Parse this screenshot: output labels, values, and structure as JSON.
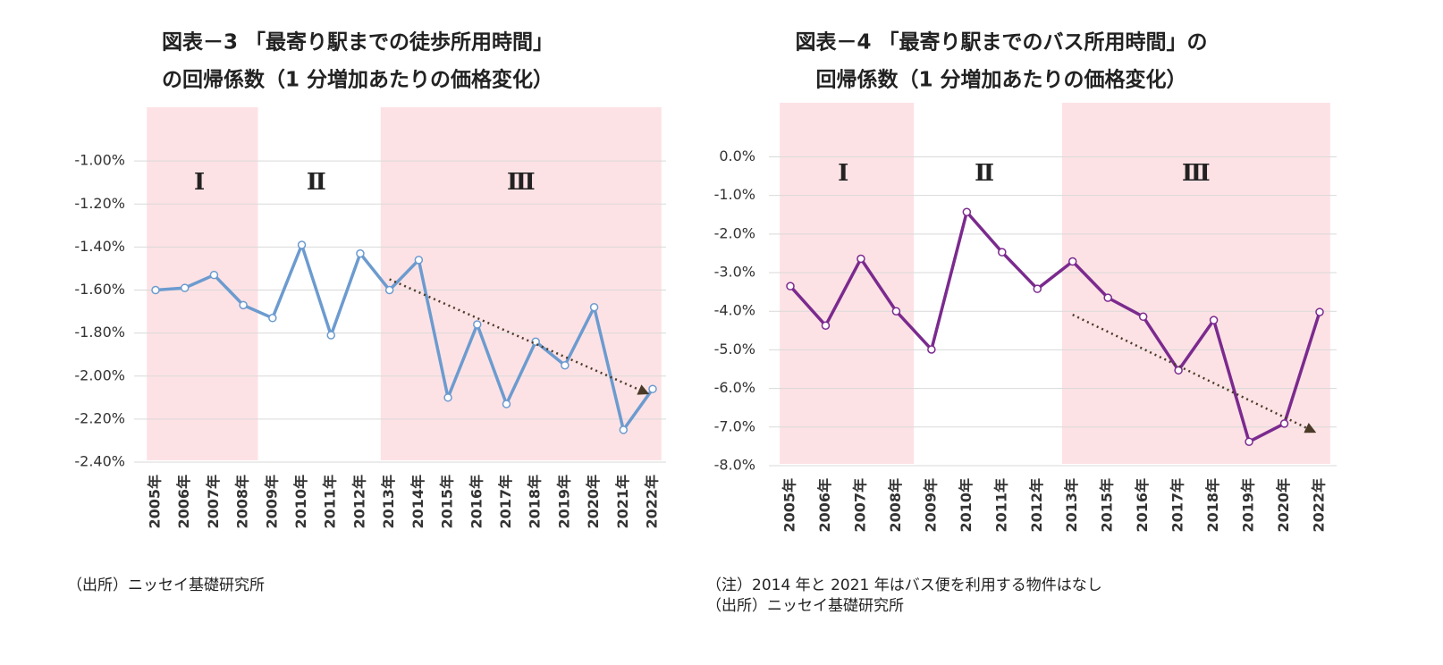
{
  "chart_data": [
    {
      "type": "line",
      "title": [
        "図表－3 「最寄り駅までの徒歩所用時間」",
        "の回帰係数（1 分増加あたりの価格変化）"
      ],
      "categories": [
        "2005年",
        "2006年",
        "2007年",
        "2008年",
        "2009年",
        "2010年",
        "2011年",
        "2012年",
        "2013年",
        "2014年",
        "2015年",
        "2016年",
        "2017年",
        "2018年",
        "2019年",
        "2020年",
        "2021年",
        "2022年"
      ],
      "series": [
        {
          "color": "#6c9bcf",
          "values": [
            -1.6,
            -1.59,
            -1.53,
            -1.67,
            -1.73,
            -1.39,
            -1.81,
            -1.43,
            -1.6,
            -1.46,
            -2.1,
            -1.76,
            -2.13,
            -1.84,
            -1.95,
            -1.68,
            -2.25,
            -2.06
          ]
        }
      ],
      "ylim": [
        -2.4,
        -0.75
      ],
      "yticks": [
        {
          "value": -2.4,
          "label": "-2.40%"
        },
        {
          "value": -2.2,
          "label": "-2.20%"
        },
        {
          "value": -2.0,
          "label": "-2.00%"
        },
        {
          "value": -1.8,
          "label": "-1.80%"
        },
        {
          "value": -1.6,
          "label": "-1.60%"
        },
        {
          "value": -1.4,
          "label": "-1.40%"
        },
        {
          "value": -1.2,
          "label": "-1.20%"
        },
        {
          "value": -1.0,
          "label": "-1.00%"
        }
      ],
      "grid": true,
      "region_color": "#fde2e5",
      "regions": [
        {
          "label": "Ⅰ",
          "from": "2005年",
          "to": "2008年",
          "shaded": true
        },
        {
          "label": "Ⅱ",
          "from": "2009年",
          "to": "2012年",
          "shaded": false
        },
        {
          "label": "Ⅲ",
          "from": "2013年",
          "to": "2022年",
          "shaded": true
        }
      ],
      "trend": {
        "from": "2013年",
        "to": "2022年",
        "values": [
          -1.55,
          -2.08
        ],
        "color": "#4a3a28"
      },
      "notes": [
        "（出所）ニッセイ基礎研究所"
      ]
    },
    {
      "type": "line",
      "title": [
        "図表－4 「最寄り駅までのバス所用時間」の",
        "回帰係数（1 分増加あたりの価格変化）"
      ],
      "categories": [
        "2005年",
        "2006年",
        "2007年",
        "2008年",
        "2009年",
        "2010年",
        "2011年",
        "2012年",
        "2013年",
        "2015年",
        "2016年",
        "2017年",
        "2018年",
        "2019年",
        "2020年",
        "2022年"
      ],
      "series": [
        {
          "color": "#7b2a8e",
          "values": [
            -3.35,
            -4.37,
            -2.64,
            -4.0,
            -4.99,
            -1.43,
            -2.47,
            -3.42,
            -2.71,
            -3.65,
            -4.14,
            -5.53,
            -4.23,
            -7.38,
            -6.91,
            -4.02
          ]
        }
      ],
      "ylim": [
        -8,
        1.4
      ],
      "yticks": [
        {
          "value": -8,
          "label": "-8.0%"
        },
        {
          "value": -7,
          "label": "-7.0%"
        },
        {
          "value": -6,
          "label": "-6.0%"
        },
        {
          "value": -5,
          "label": "-5.0%"
        },
        {
          "value": -4,
          "label": "-4.0%"
        },
        {
          "value": -3,
          "label": "-3.0%"
        },
        {
          "value": -2,
          "label": "-2.0%"
        },
        {
          "value": -1,
          "label": "-1.0%"
        },
        {
          "value": 0,
          "label": "0.0%"
        }
      ],
      "grid": true,
      "region_color": "#fde2e5",
      "regions": [
        {
          "label": "Ⅰ",
          "from": "2005年",
          "to": "2008年",
          "shaded": true
        },
        {
          "label": "Ⅱ",
          "from": "2009年",
          "to": "2012年",
          "shaded": false
        },
        {
          "label": "Ⅲ",
          "from": "2013年",
          "to": "2022年",
          "shaded": true
        }
      ],
      "trend": {
        "from": "2013年",
        "to": "2022年",
        "values": [
          -4.09,
          -7.12
        ],
        "color": "#4a3a28"
      },
      "notes": [
        "（注）2014 年と 2021 年はバス便を利用する物件はなし",
        "（出所）ニッセイ基礎研究所"
      ]
    }
  ]
}
